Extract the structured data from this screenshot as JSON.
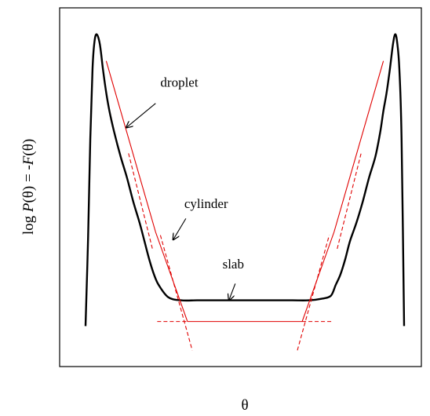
{
  "chart_data": {
    "type": "line",
    "title": "",
    "xlabel": "θ",
    "ylabel_parts": [
      "log ",
      "P",
      "(θ)  =  -",
      "F",
      "(θ)"
    ],
    "show_ticks": false,
    "grid": false,
    "xlim": [
      0,
      1
    ],
    "ylim": [
      0,
      1
    ],
    "colors": {
      "curve": "#000000",
      "approx": "#e00000",
      "text": "#000000",
      "frame": "#000000"
    },
    "series": [
      {
        "style": "solid-black",
        "x": [
          0.0,
          0.008,
          0.015,
          0.022,
          0.028,
          0.035,
          0.045,
          0.055,
          0.065,
          0.075,
          0.09,
          0.11,
          0.13,
          0.15,
          0.17,
          0.185,
          0.2,
          0.215,
          0.23,
          0.26,
          0.3,
          0.35,
          0.4,
          0.5,
          0.6,
          0.65,
          0.7,
          0.74,
          0.77,
          0.785,
          0.8,
          0.815,
          0.83,
          0.85,
          0.87,
          0.89,
          0.91,
          0.925,
          0.935,
          0.945,
          0.955,
          0.965,
          0.972,
          0.978,
          0.985,
          0.992,
          1.0
        ],
        "y": [
          0.03,
          0.32,
          0.65,
          0.88,
          0.968,
          0.993,
          0.96,
          0.875,
          0.8,
          0.74,
          0.67,
          0.59,
          0.52,
          0.44,
          0.37,
          0.31,
          0.25,
          0.2,
          0.165,
          0.125,
          0.115,
          0.115,
          0.115,
          0.115,
          0.115,
          0.115,
          0.115,
          0.12,
          0.13,
          0.165,
          0.2,
          0.25,
          0.31,
          0.37,
          0.44,
          0.52,
          0.59,
          0.67,
          0.74,
          0.8,
          0.875,
          0.96,
          0.993,
          0.968,
          0.88,
          0.65,
          0.03
        ]
      },
      {
        "style": "solid-red",
        "x": [
          0.065,
          0.22,
          0.32
        ],
        "y": [
          0.905,
          0.34,
          0.045
        ]
      },
      {
        "style": "solid-red",
        "x": [
          0.32,
          0.68
        ],
        "y": [
          0.045,
          0.045
        ]
      },
      {
        "style": "solid-red",
        "x": [
          0.68,
          0.78,
          0.935
        ],
        "y": [
          0.045,
          0.34,
          0.905
        ]
      },
      {
        "style": "dashed-red",
        "x": [
          0.135,
          0.21
        ],
        "y": [
          0.6,
          0.285
        ]
      },
      {
        "style": "dashed-red",
        "x": [
          0.79,
          0.865
        ],
        "y": [
          0.285,
          0.6
        ]
      },
      {
        "style": "dashed-red",
        "x": [
          0.235,
          0.335
        ],
        "y": [
          0.33,
          -0.05
        ]
      },
      {
        "style": "dashed-red",
        "x": [
          0.665,
          0.765
        ],
        "y": [
          -0.05,
          0.33
        ]
      },
      {
        "style": "dashed-red",
        "x": [
          0.225,
          0.32
        ],
        "y": [
          0.045,
          0.045
        ]
      },
      {
        "style": "dashed-red",
        "x": [
          0.68,
          0.775
        ],
        "y": [
          0.045,
          0.045
        ]
      }
    ],
    "annotations": [
      {
        "text": "droplet",
        "tip": [
          0.128,
          0.685
        ],
        "tail": [
          0.22,
          0.765
        ],
        "text_at": [
          0.235,
          0.82
        ]
      },
      {
        "text": "cylinder",
        "tip": [
          0.275,
          0.315
        ],
        "tail": [
          0.315,
          0.385
        ],
        "text_at": [
          0.31,
          0.42
        ]
      },
      {
        "text": "slab",
        "tip": [
          0.45,
          0.115
        ],
        "tail": [
          0.47,
          0.17
        ],
        "text_at": [
          0.43,
          0.22
        ]
      }
    ]
  }
}
